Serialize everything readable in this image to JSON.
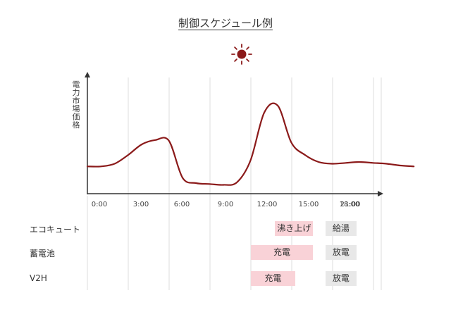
{
  "title": "制御スケジュール例",
  "icons": {
    "sun": "sun-icon"
  },
  "colors": {
    "curve": "#8b1a1a",
    "sun": "#8b1a1a",
    "pink": "#f9d2d7",
    "gray": "#e8e8e8",
    "grid": "#dcdcdc",
    "axis": "#333333"
  },
  "chart_data": {
    "type": "line",
    "ylabel": "電力市場価格",
    "x_ticks": [
      "0:00",
      "3:00",
      "6:00",
      "9:00",
      "12:00",
      "15:00",
      "18:00",
      "21:00"
    ],
    "series": [
      {
        "x": [
          0,
          1,
          2,
          3,
          4,
          5,
          6,
          7,
          8,
          9,
          10,
          11,
          12,
          13,
          14,
          15,
          16,
          17,
          18,
          19,
          20,
          21,
          22,
          23,
          24
        ],
        "y": [
          23,
          23,
          26,
          36,
          48,
          53,
          52,
          10,
          4,
          3,
          2,
          5,
          30,
          84,
          92,
          50,
          36,
          28,
          26,
          27,
          28,
          27,
          26,
          24,
          23
        ]
      }
    ]
  },
  "rows": [
    {
      "label": "エコキュート",
      "bars": [
        {
          "label": "沸き上げ",
          "start": 13.8,
          "end": 16.6,
          "color": "pink"
        },
        {
          "label": "給湯",
          "start": 17.5,
          "end": 19.8,
          "color": "gray"
        }
      ]
    },
    {
      "label": "蓄電池",
      "bars": [
        {
          "label": "充電",
          "start": 12.0,
          "end": 16.6,
          "color": "pink"
        },
        {
          "label": "放電",
          "start": 17.5,
          "end": 19.8,
          "color": "gray"
        }
      ]
    },
    {
      "label": "V2H",
      "bars": [
        {
          "label": "充電",
          "start": 12.0,
          "end": 15.3,
          "color": "pink"
        },
        {
          "label": "放電",
          "start": 17.5,
          "end": 19.8,
          "color": "gray"
        }
      ]
    }
  ]
}
